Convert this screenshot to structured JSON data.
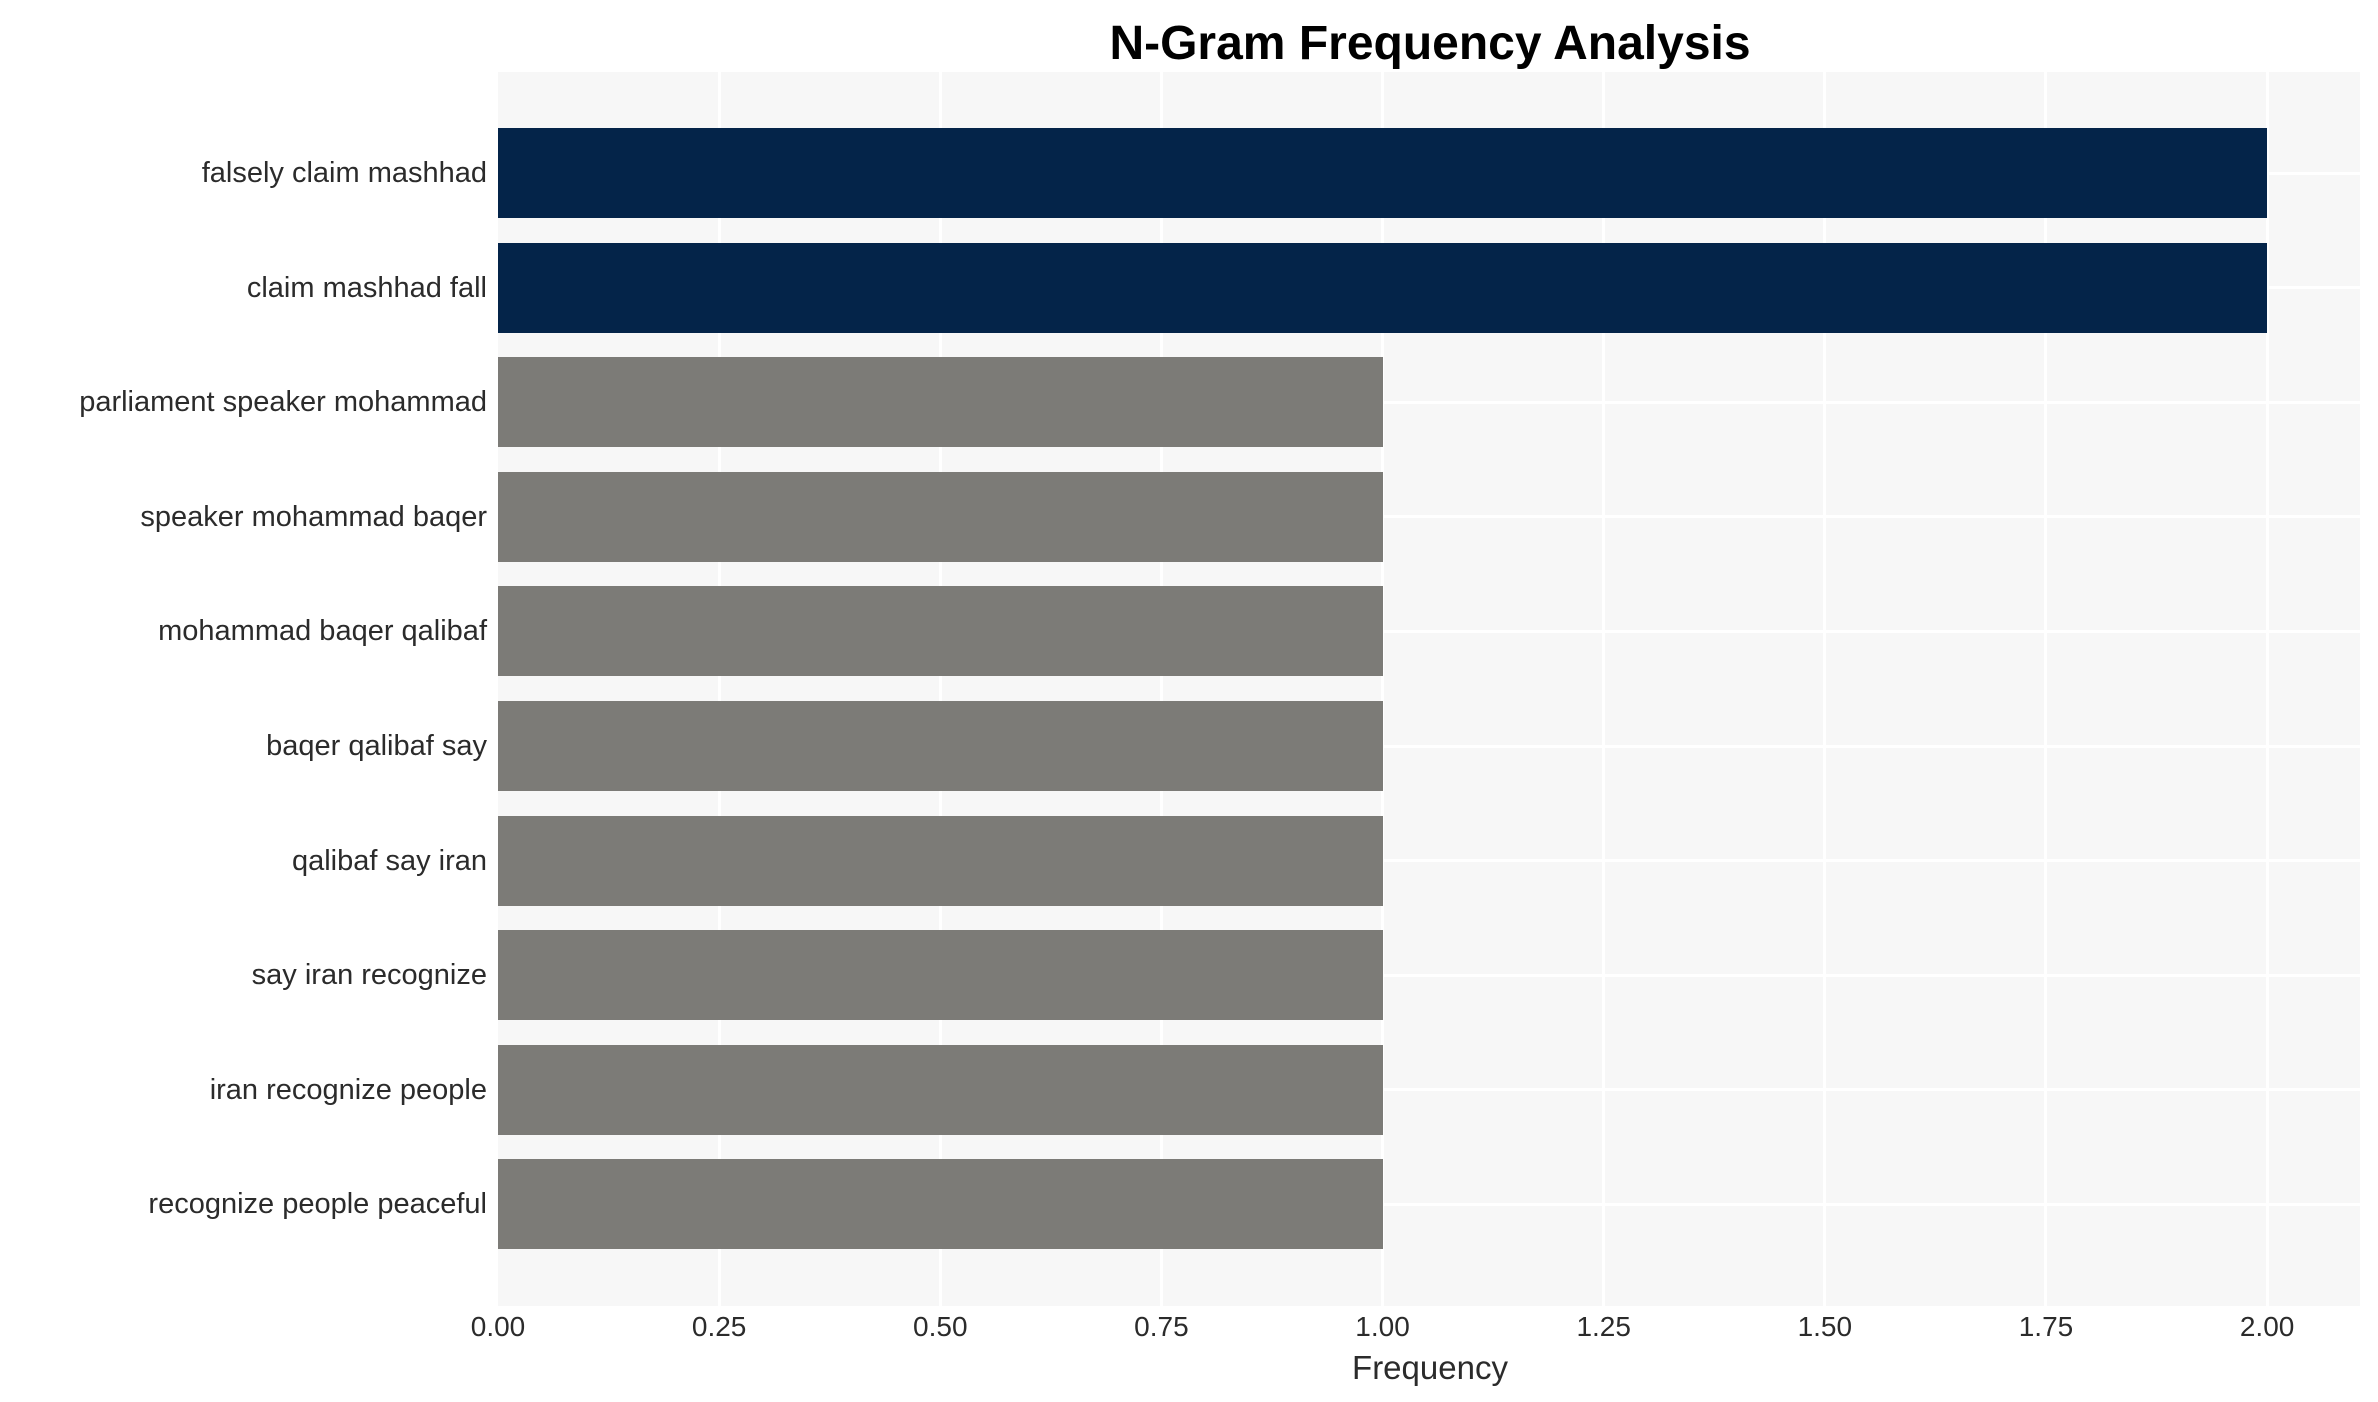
{
  "chart_data": {
    "type": "bar",
    "orientation": "horizontal",
    "title": "N-Gram Frequency Analysis",
    "xlabel": "Frequency",
    "ylabel": "",
    "categories": [
      "falsely claim mashhad",
      "claim mashhad fall",
      "parliament speaker mohammad",
      "speaker mohammad baqer",
      "mohammad baqer qalibaf",
      "baqer qalibaf say",
      "qalibaf say iran",
      "say iran recognize",
      "iran recognize people",
      "recognize people peaceful"
    ],
    "values": [
      2,
      2,
      1,
      1,
      1,
      1,
      1,
      1,
      1,
      1
    ],
    "bar_colors": [
      "#042449",
      "#042449",
      "#7c7b77",
      "#7c7b77",
      "#7c7b77",
      "#7c7b77",
      "#7c7b77",
      "#7c7b77",
      "#7c7b77",
      "#7c7b77"
    ],
    "xticks": [
      0,
      0.25,
      0.5,
      0.75,
      1.0,
      1.25,
      1.5,
      1.75,
      2.0
    ],
    "xtick_labels": [
      "0.00",
      "0.25",
      "0.50",
      "0.75",
      "1.00",
      "1.25",
      "1.50",
      "1.75",
      "2.00"
    ],
    "xlim": [
      0,
      2.105
    ],
    "grid": true,
    "legend": false,
    "colors": {
      "bar_high": "#042449",
      "bar_low": "#7c7b77",
      "plot_background": "#f7f7f7",
      "gridline": "#ffffff",
      "tick_text": "#2b2b2b",
      "title_text": "#000000",
      "figure_background": "#ffffff"
    }
  }
}
